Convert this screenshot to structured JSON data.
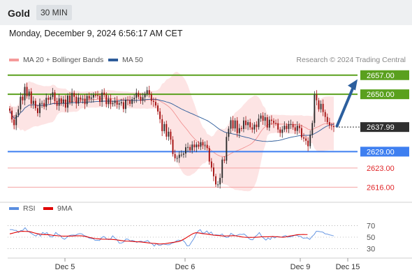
{
  "header": {
    "symbol": "Gold",
    "timeframe": "30 MIN"
  },
  "datetime": "Monday, December 9, 2024 6:56:17 AM CET",
  "legend": {
    "bollinger": "MA 20 + Bollinger Bands",
    "ma50": "MA 50",
    "copyright": "Research © 2024 Trading Central",
    "rsi": "RSI",
    "ma9": "9MA"
  },
  "colors": {
    "up": "#2e2e2e",
    "down": "#a50f0f",
    "bands_fill": "#fde4e4",
    "bollinger": "#f08a8a",
    "ma50": "#2d5c9a",
    "resistance": "#5aa01e",
    "pivot": "#3e7ff0",
    "support": "#f5a3a3",
    "rsi": "#5a8ee0",
    "rsi_ma": "#e00000",
    "arrow": "#2c5f9e"
  },
  "chart_data": {
    "type": "candlestick",
    "y_range": [
      2612,
      2660
    ],
    "x_ticks": [
      "Dec 5",
      "Dec 6",
      "Dec 9",
      "Dec 15"
    ],
    "last_price": "2637.99",
    "levels": [
      {
        "label": "2657.00",
        "value": 2657,
        "kind": "resistance"
      },
      {
        "label": "2650.00",
        "value": 2650,
        "kind": "resistance"
      },
      {
        "label": "2629.00",
        "value": 2629,
        "kind": "pivot"
      },
      {
        "label": "2623.00",
        "value": 2623,
        "kind": "support"
      },
      {
        "label": "2616.00",
        "value": 2616,
        "kind": "support"
      }
    ],
    "projection": {
      "from": 2638,
      "to": 2656
    },
    "closes": [
      2644.0,
      2640.8,
      2638.7,
      2642.5,
      2644.5,
      2649.1,
      2647.8,
      2652.7,
      2649.3,
      2651.0,
      2646.5,
      2647.6,
      2644.9,
      2643.1,
      2646.8,
      2646.8,
      2645.4,
      2648.7,
      2648.0,
      2649.0,
      2650.7,
      2647.5,
      2645.8,
      2648.5,
      2646.7,
      2648.1,
      2645.1,
      2649.5,
      2647.0,
      2650.5,
      2649.1,
      2646.6,
      2648.8,
      2648.1,
      2648.4,
      2646.4,
      2649.4,
      2648.4,
      2648.8,
      2649.8,
      2649.7,
      2649.4,
      2647.2,
      2650.6,
      2649.8,
      2646.4,
      2648.4,
      2646.4,
      2646.8,
      2647.7,
      2646.2,
      2646.7,
      2647.1,
      2644.6,
      2648.0,
      2647.8,
      2646.5,
      2648.2,
      2648.7,
      2650.5,
      2649.1,
      2647.7,
      2648.9,
      2650.1,
      2651.5,
      2650.0,
      2647.6,
      2647.2,
      2645.9,
      2643.7,
      2640.9,
      2636.5,
      2639.1,
      2634.5,
      2636.3,
      2633.4,
      2628.1,
      2626.6,
      2626.7,
      2627.9,
      2627.9,
      2628.3,
      2630.6,
      2630.7,
      2629.5,
      2631.6,
      2630.6,
      2631.6,
      2630.8,
      2632.5,
      2631.4,
      2631.5,
      2630.3,
      2625.4,
      2623.2,
      2620.0,
      2617.0,
      2617.0,
      2619.4,
      2626.1,
      2625.7,
      2634.4,
      2637.4,
      2640.5,
      2637.5,
      2640.4,
      2635.8,
      2637.6,
      2637.3,
      2640.4,
      2638.7,
      2639.8,
      2637.9,
      2637.1,
      2638.9,
      2638.0,
      2641.1,
      2642.2,
      2640.3,
      2641.6,
      2637.8,
      2640.7,
      2640.3,
      2639.5,
      2639.4,
      2637.1,
      2635.9,
      2637.1,
      2638.5,
      2637.3,
      2639.1,
      2639.1,
      2637.9,
      2636.6,
      2638.5,
      2637.6,
      2634.2,
      2633.8,
      2633.0,
      2631.0,
      2635.2,
      2639.5,
      2649.9,
      2647.8,
      2644.5,
      2646.5,
      2643.5,
      2641.7,
      2639.8,
      2638.6,
      2638.4,
      2638.0
    ]
  },
  "rsi_data": {
    "ticks": [
      "70",
      "50",
      "30"
    ],
    "range": [
      20,
      80
    ],
    "rsi": [
      63.0,
      63.0,
      61.8,
      61.8,
      57.9,
      61.4,
      61.9,
      66.3,
      61.2,
      58.6,
      56.2,
      53.6,
      52.0,
      55.9,
      51.7,
      58.1,
      55.8,
      57.8,
      52.1,
      50.3,
      51.7,
      58.1,
      54.5,
      53.3,
      48.5,
      46.3,
      49.4,
      52.2,
      53.5,
      53.7,
      53.2,
      55.2,
      56.2,
      55.5,
      52.6,
      51.5,
      48.8,
      47.5,
      47.5,
      44.4,
      44.7,
      44.2,
      49.5,
      51.1,
      47.6,
      45.8,
      46.2,
      52.3,
      48.4,
      45.6,
      39.7,
      39.9,
      41.6,
      46.7,
      46.5,
      43.5,
      44.3,
      43.2,
      41.0,
      42.6,
      43.0,
      41.6,
      42.7,
      44.2,
      40.4,
      38.7,
      34.6,
      38.9,
      36.1,
      36.1,
      38.3,
      37.6,
      36.9,
      37.1,
      39.6,
      40.6,
      43.2,
      45.0,
      44.2,
      44.9,
      41.2,
      34.9,
      35.3,
      41.5,
      47.0,
      54.7,
      60.4,
      62.9,
      57.0,
      57.3,
      60.6,
      56.2,
      58.9,
      53.1,
      53.9,
      53.6,
      53.2,
      55.5,
      51.1,
      49.5,
      50.2,
      56.6,
      54.3,
      52.3,
      53.6,
      55.0,
      54.6,
      55.4,
      52.6,
      48.4,
      45.8,
      45.5,
      50.7,
      53.6,
      58.0,
      51.7,
      48.2,
      44.9,
      48.6,
      46.0,
      51.5,
      48.6,
      51.1,
      50.6,
      49.9,
      51.4,
      52.8,
      50.1,
      50.6,
      51.0,
      53.0,
      53.3,
      51.5,
      51.2,
      48.1,
      48.6,
      48.8,
      46.1,
      51.0,
      54.3,
      60.1,
      59.9,
      59.2,
      58.6,
      55.8,
      55.3,
      54.0,
      53.3,
      52.1
    ],
    "ma9": [
      55.6,
      56.5,
      57.5,
      58.5,
      59.4,
      59.9,
      60.1,
      59.9,
      59.8,
      59.5,
      58.6,
      57.5,
      56.5,
      55.6,
      55.1,
      54.6,
      54.3,
      54.3,
      54.1,
      53.6,
      53.0,
      52.8,
      52.4,
      52.1,
      51.8,
      51.7,
      51.8,
      51.9,
      51.8,
      52.0,
      52.3,
      52.3,
      52.3,
      52.2,
      51.5,
      50.8,
      49.9,
      49.1,
      48.3,
      47.6,
      47.2,
      46.9,
      46.6,
      46.4,
      46.4,
      46.5,
      46.3,
      46.0,
      45.7,
      45.2,
      44.7,
      44.1,
      43.6,
      43.2,
      43.1,
      43.0,
      42.7,
      42.3,
      42.1,
      42.0,
      41.7,
      41.2,
      40.8,
      40.3,
      39.8,
      39.5,
      39.3,
      38.8,
      38.4,
      38.3,
      38.6,
      38.9,
      39.4,
      40.0,
      40.7,
      41.2,
      41.8,
      42.3,
      43.6,
      45.5,
      47.6,
      49.9,
      52.3,
      54.6,
      56.6,
      57.6,
      57.4,
      56.8,
      56.1,
      55.7,
      55.3,
      54.7,
      54.1,
      53.6,
      53.2,
      52.9,
      52.6,
      52.2,
      52.0,
      52.1,
      52.2,
      52.3,
      52.6,
      52.4,
      51.8,
      51.1,
      50.4,
      50.0,
      49.8,
      49.7,
      49.6,
      49.7,
      49.8,
      49.9,
      50.2,
      50.6,
      50.6,
      50.6,
      50.7,
      50.9,
      51.0,
      50.9,
      50.6,
      50.3,
      50.0,
      49.9,
      50.3,
      51.2,
      52.0,
      52.7,
      53.3,
      54.0,
      54.4,
      54.5,
      54.6,
      54.5,
      54.5
    ]
  }
}
